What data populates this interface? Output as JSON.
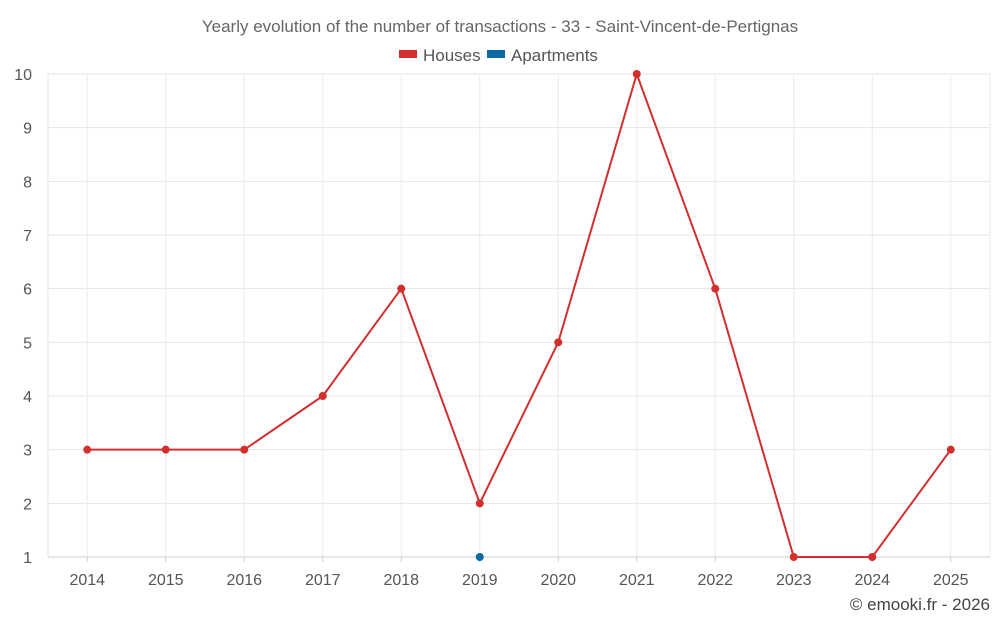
{
  "chart_data": {
    "type": "line",
    "title": "Yearly evolution of the number of transactions - 33 - Saint-Vincent-de-Pertignas",
    "categories": [
      "2014",
      "2015",
      "2016",
      "2017",
      "2018",
      "2019",
      "2020",
      "2021",
      "2022",
      "2023",
      "2024",
      "2025"
    ],
    "series": [
      {
        "name": "Houses",
        "color": "#d32f2f",
        "values": [
          3,
          3,
          3,
          4,
          6,
          2,
          5,
          10,
          6,
          1,
          1,
          3
        ]
      },
      {
        "name": "Apartments",
        "color": "#0b6aa2",
        "values": [
          null,
          null,
          null,
          null,
          null,
          1,
          null,
          null,
          null,
          null,
          null,
          null
        ]
      }
    ],
    "ylim": [
      1,
      10
    ],
    "yticks": [
      1,
      2,
      3,
      4,
      5,
      6,
      7,
      8,
      9,
      10
    ],
    "grid": true,
    "legend": "top-center"
  },
  "footer": {
    "credit": "© emooki.fr - 2026"
  }
}
